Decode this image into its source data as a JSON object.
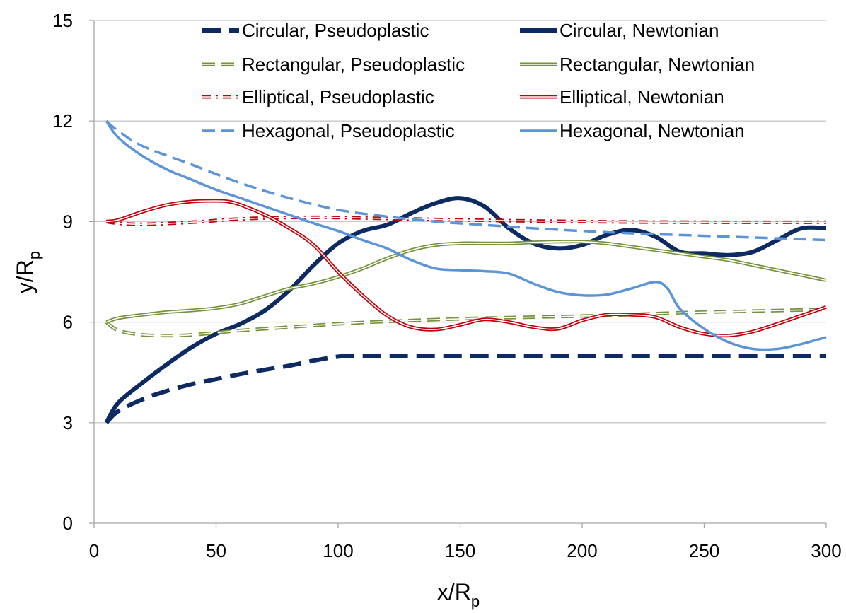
{
  "chart_data": {
    "type": "line",
    "title": "",
    "xlabel": {
      "base": "x/R",
      "sub": "p"
    },
    "ylabel": {
      "base": "y/R",
      "sub": "p"
    },
    "xlim": [
      0,
      300
    ],
    "ylim": [
      0,
      15
    ],
    "xticks": [
      0,
      50,
      100,
      150,
      200,
      250,
      300
    ],
    "yticks": [
      0,
      3,
      6,
      9,
      12,
      15
    ],
    "grid": "horizontal",
    "legend_position": "top",
    "series": [
      {
        "name": "Circular, Pseudoplastic",
        "color": "#0e2a63",
        "style": "dash-thick",
        "x": [
          5,
          10,
          20,
          30,
          40,
          50,
          60,
          70,
          80,
          90,
          100,
          110,
          120,
          130,
          150,
          170,
          200,
          230,
          260,
          300
        ],
        "y": [
          3.0,
          3.35,
          3.7,
          3.95,
          4.15,
          4.3,
          4.45,
          4.58,
          4.7,
          4.85,
          4.97,
          5.0,
          4.98,
          4.98,
          4.98,
          4.98,
          4.98,
          4.98,
          4.98,
          4.98
        ]
      },
      {
        "name": "Circular, Newtonian",
        "color": "#0e2a63",
        "style": "solid-thick",
        "x": [
          5,
          10,
          20,
          30,
          40,
          50,
          60,
          70,
          80,
          90,
          100,
          110,
          120,
          130,
          140,
          150,
          160,
          170,
          180,
          190,
          200,
          210,
          220,
          230,
          240,
          250,
          260,
          270,
          280,
          290,
          300
        ],
        "y": [
          3.0,
          3.6,
          4.2,
          4.75,
          5.25,
          5.65,
          5.95,
          6.35,
          6.95,
          7.7,
          8.35,
          8.72,
          8.9,
          9.25,
          9.55,
          9.7,
          9.45,
          8.8,
          8.35,
          8.2,
          8.3,
          8.6,
          8.75,
          8.55,
          8.1,
          8.05,
          8.0,
          8.1,
          8.45,
          8.8,
          8.8
        ]
      },
      {
        "name": "Rectangular, Pseudoplastic",
        "color": "#76923c",
        "style": "dash-double",
        "x": [
          5,
          10,
          20,
          30,
          40,
          60,
          80,
          100,
          120,
          150,
          180,
          210,
          240,
          270,
          300
        ],
        "y": [
          6.0,
          5.75,
          5.62,
          5.6,
          5.62,
          5.75,
          5.85,
          5.95,
          6.02,
          6.1,
          6.15,
          6.2,
          6.28,
          6.33,
          6.38
        ]
      },
      {
        "name": "Rectangular, Newtonian",
        "color": "#76923c",
        "style": "solid-double",
        "x": [
          5,
          10,
          20,
          30,
          40,
          50,
          60,
          70,
          80,
          90,
          100,
          110,
          120,
          130,
          140,
          150,
          160,
          170,
          180,
          190,
          200,
          210,
          220,
          230,
          240,
          250,
          260,
          270,
          280,
          290,
          300
        ],
        "y": [
          6.0,
          6.12,
          6.22,
          6.3,
          6.35,
          6.42,
          6.55,
          6.78,
          7.0,
          7.15,
          7.35,
          7.6,
          7.9,
          8.15,
          8.3,
          8.35,
          8.35,
          8.35,
          8.38,
          8.4,
          8.4,
          8.35,
          8.25,
          8.15,
          8.05,
          7.95,
          7.85,
          7.7,
          7.55,
          7.4,
          7.25
        ]
      },
      {
        "name": "Elliptical, Pseudoplastic",
        "color": "#c0000a",
        "style": "dot-double",
        "x": [
          5,
          10,
          20,
          40,
          60,
          80,
          100,
          150,
          200,
          250,
          300
        ],
        "y": [
          9.0,
          8.95,
          8.92,
          8.98,
          9.08,
          9.12,
          9.12,
          9.05,
          9.0,
          8.98,
          8.98
        ]
      },
      {
        "name": "Elliptical, Newtonian",
        "color": "#c0000a",
        "style": "solid-double",
        "x": [
          5,
          10,
          20,
          30,
          40,
          50,
          55,
          60,
          70,
          80,
          90,
          100,
          110,
          120,
          130,
          140,
          150,
          160,
          170,
          180,
          190,
          200,
          210,
          220,
          230,
          240,
          250,
          260,
          270,
          280,
          290,
          300
        ],
        "y": [
          9.0,
          9.05,
          9.3,
          9.5,
          9.6,
          9.62,
          9.6,
          9.5,
          9.2,
          8.8,
          8.3,
          7.5,
          6.8,
          6.2,
          5.85,
          5.78,
          5.92,
          6.08,
          6.0,
          5.85,
          5.8,
          6.05,
          6.22,
          6.22,
          6.15,
          5.85,
          5.65,
          5.6,
          5.72,
          5.95,
          6.2,
          6.45
        ]
      },
      {
        "name": "Hexagonal, Pseudoplastic",
        "color": "#5b94d8",
        "style": "dash",
        "x": [
          5,
          10,
          20,
          40,
          60,
          80,
          100,
          120,
          140,
          160,
          180,
          200,
          220,
          240,
          260,
          280,
          300
        ],
        "y": [
          12.0,
          11.7,
          11.25,
          10.7,
          10.15,
          9.7,
          9.35,
          9.15,
          9.0,
          8.9,
          8.8,
          8.72,
          8.65,
          8.6,
          8.55,
          8.5,
          8.45
        ]
      },
      {
        "name": "Hexagonal, Newtonian",
        "color": "#5b94d8",
        "style": "solid",
        "x": [
          5,
          10,
          20,
          30,
          40,
          50,
          60,
          70,
          80,
          90,
          100,
          110,
          120,
          130,
          140,
          150,
          160,
          170,
          180,
          190,
          200,
          210,
          220,
          230,
          235,
          240,
          250,
          260,
          270,
          280,
          290,
          300
        ],
        "y": [
          12.0,
          11.5,
          10.95,
          10.55,
          10.25,
          9.95,
          9.7,
          9.45,
          9.2,
          8.95,
          8.72,
          8.45,
          8.2,
          7.85,
          7.6,
          7.55,
          7.52,
          7.45,
          7.15,
          6.9,
          6.8,
          6.82,
          7.0,
          7.2,
          7.0,
          6.4,
          5.8,
          5.4,
          5.2,
          5.2,
          5.35,
          5.55
        ]
      }
    ]
  }
}
